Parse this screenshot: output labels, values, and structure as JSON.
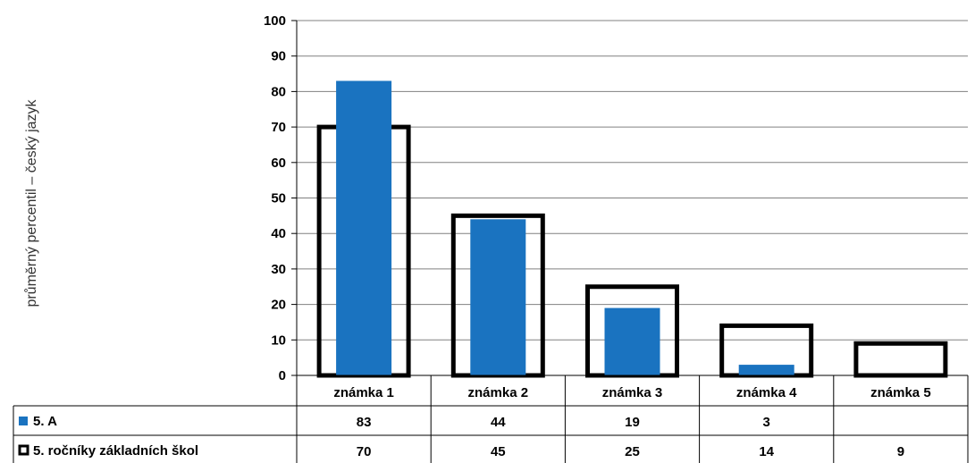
{
  "chart_data": {
    "type": "bar",
    "categories": [
      "známka 1",
      "známka 2",
      "známka 3",
      "známka 4",
      "známka 5"
    ],
    "series": [
      {
        "name": "5. A",
        "values": [
          83,
          44,
          19,
          3,
          null
        ],
        "color": "#1a73c0",
        "style": "filled"
      },
      {
        "name": "5. ročníky základních škol",
        "values": [
          70,
          45,
          25,
          14,
          9
        ],
        "color": "#000000",
        "style": "outline"
      }
    ],
    "ylabel": "průměrný percentil – český jazyk",
    "ylim": [
      0,
      100
    ],
    "yticks": [
      0,
      10,
      20,
      30,
      40,
      50,
      60,
      70,
      80,
      90,
      100
    ],
    "grid": true,
    "legend": "data-table"
  }
}
